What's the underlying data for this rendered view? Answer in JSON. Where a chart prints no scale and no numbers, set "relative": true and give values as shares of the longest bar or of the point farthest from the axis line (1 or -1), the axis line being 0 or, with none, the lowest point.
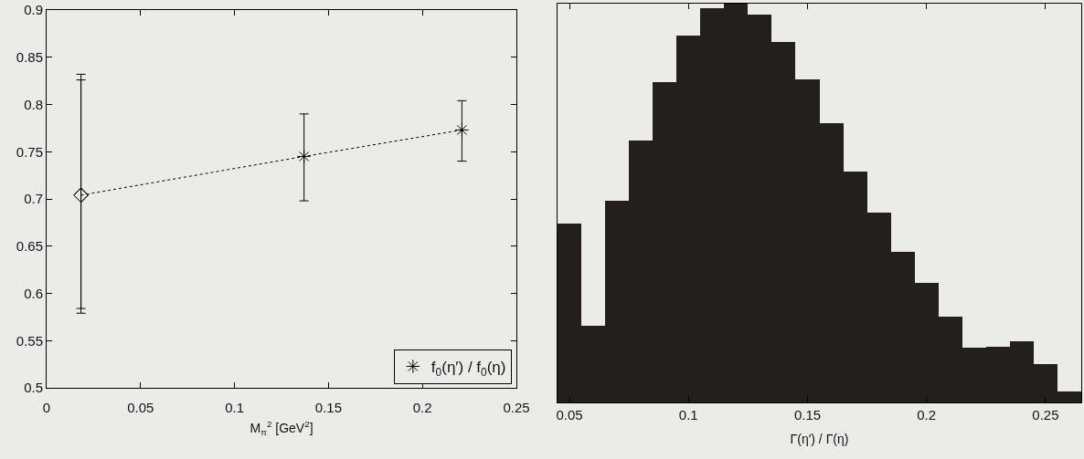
{
  "chart_data": [
    {
      "type": "scatter",
      "xlabel": "M$_{π}$$^{2}$ [GeV$^{2}$]",
      "xlim": [
        0,
        0.25
      ],
      "xticks": [
        0,
        0.05,
        0.1,
        0.15,
        0.2,
        0.25
      ],
      "ylim": [
        0.5,
        0.9
      ],
      "yticks": [
        0.5,
        0.55,
        0.6,
        0.65,
        0.7,
        0.75,
        0.8,
        0.85,
        0.9
      ],
      "legend": "bottom right",
      "series": [
        {
          "type": "line",
          "color": "#000000",
          "line_style": "dotted",
          "marker": "none",
          "x": [
            0.0183,
            0.137,
            0.221
          ],
          "values": [
            0.704,
            0.745,
            0.773
          ]
        },
        {
          "type": "scatter",
          "color": "#000000",
          "marker": "diamond",
          "x": [
            0.0183
          ],
          "values": [
            0.704
          ],
          "errors": [
            [
              0.579,
              0.832
            ]
          ]
        },
        {
          "type": "scatter",
          "color": "#000000",
          "marker": "diamond",
          "x": [
            0.0183
          ],
          "values": [
            0.704
          ],
          "errors": [
            [
              0.584,
              0.826
            ]
          ]
        },
        {
          "type": "scatter",
          "name": "f$_{0}$(η′) / f$_{0}$(η)",
          "color": "#000000",
          "marker": "cross",
          "x": [
            0.137,
            0.221
          ],
          "values": [
            0.745,
            0.773
          ],
          "errors": [
            [
              0.698,
              0.79
            ],
            [
              0.74,
              0.804
            ]
          ]
        }
      ]
    },
    {
      "type": "bar",
      "xlabel": "Γ(η′) / Γ(η)",
      "relative": true,
      "tick_labels": "x",
      "xlim": [
        0.045,
        0.265
      ],
      "xticks": [
        0.05,
        0.1,
        0.15,
        0.2,
        0.25
      ],
      "color": "#231f1c",
      "x": [
        0.05,
        0.06,
        0.07,
        0.08,
        0.09,
        0.1,
        0.11,
        0.12,
        0.13,
        0.14,
        0.15,
        0.16,
        0.17,
        0.18,
        0.19,
        0.2,
        0.21,
        0.22,
        0.23,
        0.24,
        0.25,
        0.26
      ],
      "values": [
        0.448,
        0.193,
        0.505,
        0.657,
        0.804,
        0.919,
        0.988,
        1,
        0.973,
        0.904,
        0.809,
        0.7,
        0.579,
        0.475,
        0.377,
        0.299,
        0.214,
        0.137,
        0.14,
        0.154,
        0.096,
        0.027
      ]
    }
  ]
}
